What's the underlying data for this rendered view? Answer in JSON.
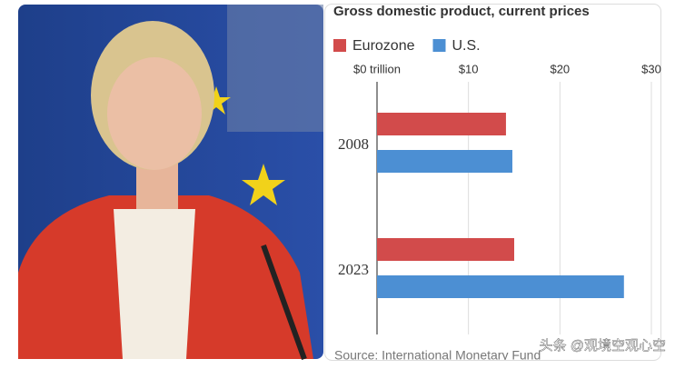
{
  "chart_data": {
    "type": "hbar",
    "title": "Gross domestic product, current prices",
    "categories": [
      "2008",
      "2023"
    ],
    "series": [
      {
        "name": "Eurozone",
        "color": "#d24b4b",
        "values": [
          14.1,
          15.0
        ]
      },
      {
        "name": "U.S.",
        "color": "#4c8fd3",
        "values": [
          14.8,
          27.0
        ]
      }
    ],
    "xlim": [
      0,
      30
    ],
    "xticks": [
      {
        "value": 0,
        "label": "$0 trillion"
      },
      {
        "value": 10,
        "label": "$10"
      },
      {
        "value": 20,
        "label": "$20"
      },
      {
        "value": 30,
        "label": "$30"
      }
    ],
    "grid": true,
    "source": "Source: International Monetary Fund"
  },
  "watermark": "头条 @观境空观心空"
}
